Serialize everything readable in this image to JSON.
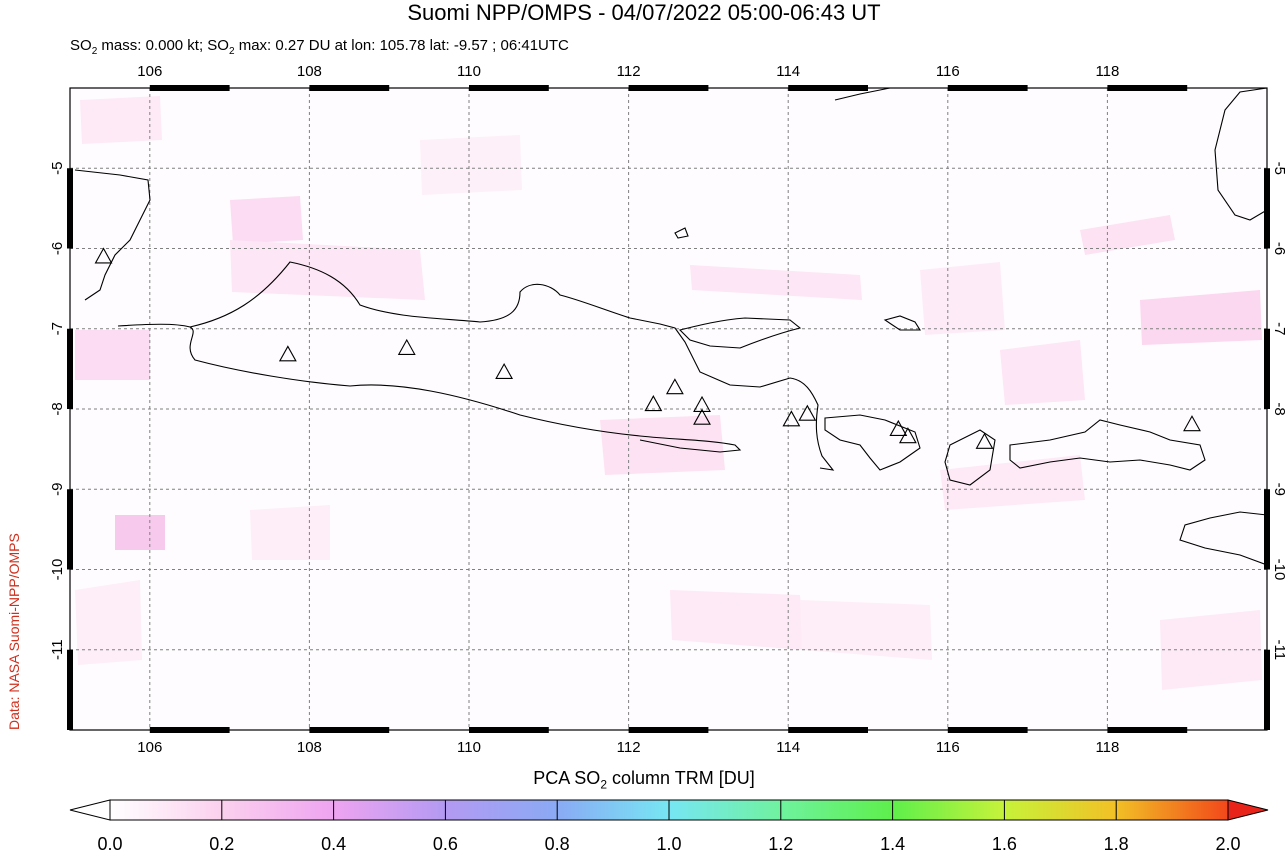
{
  "title": "Suomi NPP/OMPS - 04/07/2022 05:00-06:43 UT",
  "subtitle": {
    "pre": "SO",
    "sub": "2",
    "mid": " mass: 0.000 kt; SO",
    "sub2": "2",
    "post": " max: 0.27 DU at lon: 105.78 lat: -9.57 ; 06:41UTC"
  },
  "credit": "Data: NASA Suomi-NPP/OMPS",
  "map": {
    "lon_range": [
      105,
      120
    ],
    "lat_range": [
      -12,
      -4
    ],
    "lon_ticks": [
      "106",
      "108",
      "110",
      "112",
      "114",
      "116",
      "118"
    ],
    "lat_ticks": [
      "-5",
      "-6",
      "-7",
      "-8",
      "-9",
      "-10",
      "-11"
    ],
    "grid": true,
    "volcano_icon": "triangle-icon",
    "volcanoes": [
      {
        "lon": 105.42,
        "lat": -6.1
      },
      {
        "lon": 107.73,
        "lat": -7.32
      },
      {
        "lon": 109.22,
        "lat": -7.24
      },
      {
        "lon": 110.44,
        "lat": -7.54
      },
      {
        "lon": 112.31,
        "lat": -7.94
      },
      {
        "lon": 112.58,
        "lat": -7.73
      },
      {
        "lon": 112.92,
        "lat": -7.95
      },
      {
        "lon": 112.92,
        "lat": -8.11
      },
      {
        "lon": 114.04,
        "lat": -8.13
      },
      {
        "lon": 114.24,
        "lat": -8.06
      },
      {
        "lon": 115.38,
        "lat": -8.25
      },
      {
        "lon": 115.5,
        "lat": -8.34
      },
      {
        "lon": 116.46,
        "lat": -8.41
      },
      {
        "lon": 119.06,
        "lat": -8.19
      }
    ],
    "so2_max": {
      "lon": 105.78,
      "lat": -9.57,
      "value": 0.27
    }
  },
  "colorbar": {
    "title_pre": "PCA SO",
    "title_sub": "2",
    "title_post": " column TRM [DU]",
    "labels": [
      "0.0",
      "0.2",
      "0.4",
      "0.6",
      "0.8",
      "1.0",
      "1.2",
      "1.4",
      "1.6",
      "1.8",
      "2.0"
    ],
    "range": [
      0,
      2.0
    ],
    "colors": [
      "#ffffff",
      "#fbd0ee",
      "#eea4f0",
      "#b39af2",
      "#8aaaf5",
      "#77e6f3",
      "#6ff29f",
      "#5eef4b",
      "#c7f23a",
      "#f2c026",
      "#f2481a",
      "#e8241a"
    ]
  }
}
